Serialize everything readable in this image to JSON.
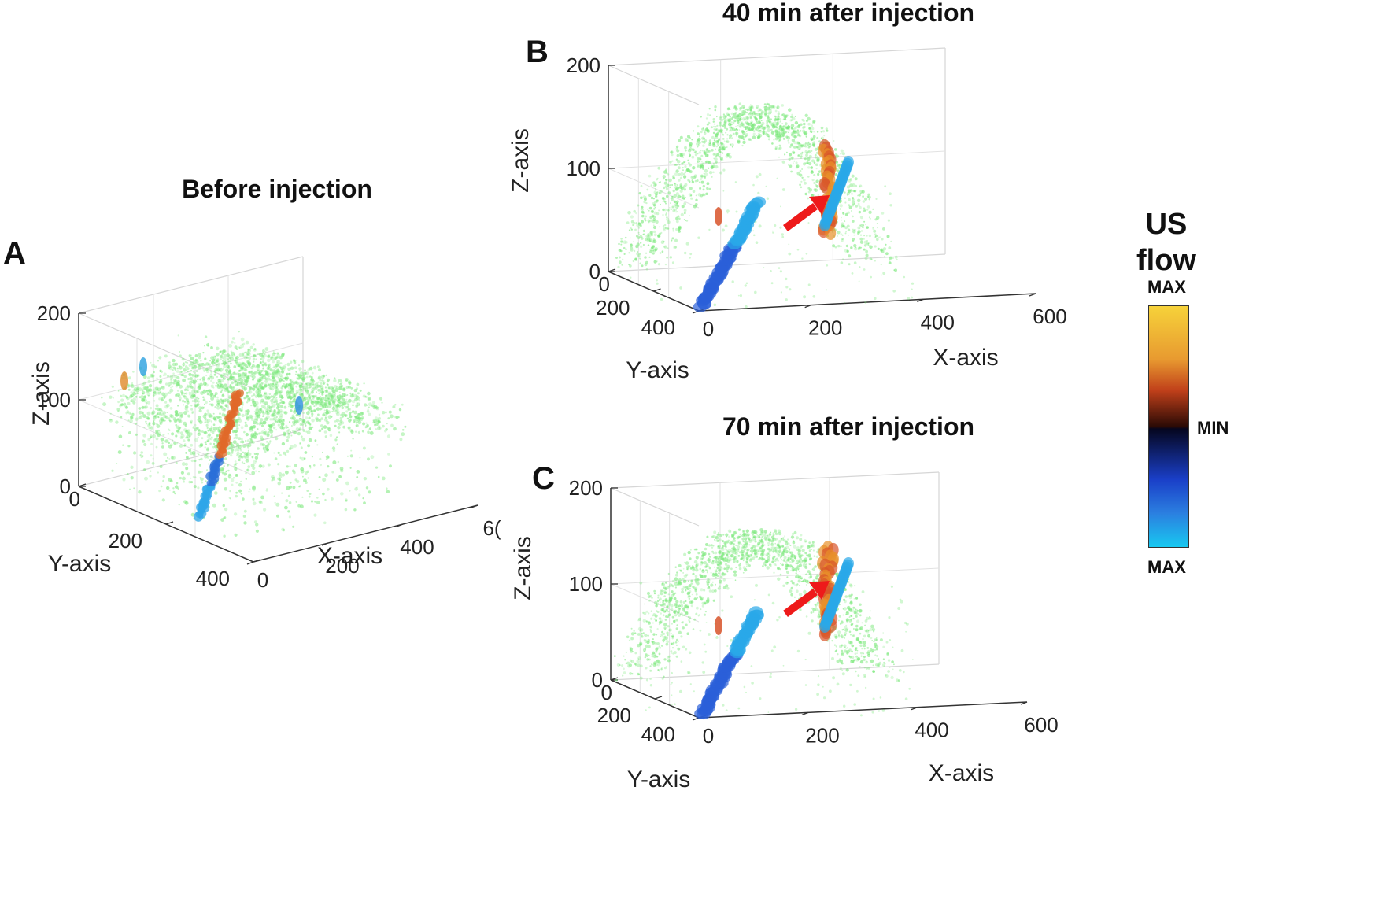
{
  "colors": {
    "background": "#3f8f3f",
    "cb_top": "#f6d23a",
    "cb_mid_warm": "#c0401a",
    "cb_mid_dark": "#2a0a05",
    "cb_mid_cool": "#05061f",
    "cb_low_cool": "#1a3fc8",
    "cb_bottom": "#18c8f0",
    "arrow": "#ee1a1a",
    "point_green": "#7ae87a"
  },
  "colorbar": {
    "title_line1": "US",
    "title_line2": "flow",
    "top_label": "MAX",
    "mid_label": "MIN",
    "bottom_label": "MAX"
  },
  "chart_data": [
    {
      "type": "scatter",
      "panel": "A",
      "title": "Before injection",
      "xlabel": "X-axis",
      "ylabel": "Y-axis",
      "zlabel": "Z-axis",
      "xlim": [
        0,
        600
      ],
      "ylim": [
        0,
        400
      ],
      "zlim": [
        0,
        200
      ],
      "x_ticks": [
        "0",
        "200",
        "400",
        "6("
      ],
      "y_ticks": [
        "0",
        "200",
        "400"
      ],
      "z_ticks": [
        "0",
        "100",
        "200"
      ],
      "arrow": false,
      "note": "3D ultrasound flow volume; dense green cloud with a thin diagonal blue/red vessel"
    },
    {
      "type": "scatter",
      "panel": "B",
      "title": "40 min after injection",
      "xlabel": "X-axis",
      "ylabel": "Y-axis",
      "zlabel": "Z-axis",
      "xlim": [
        0,
        600
      ],
      "ylim": [
        0,
        400
      ],
      "zlim": [
        0,
        200
      ],
      "x_ticks": [
        "0",
        "200",
        "400",
        "600"
      ],
      "y_ticks": [
        "0",
        "200",
        "400"
      ],
      "z_ticks": [
        "0",
        "100",
        "200"
      ],
      "arrow": true,
      "note": "Arched green vessel, strong blue diagonal vessel, orange/red hotspot marked by red arrow"
    },
    {
      "type": "scatter",
      "panel": "C",
      "title": "70 min after injection",
      "xlabel": "X-axis",
      "ylabel": "Y-axis",
      "zlabel": "Z-axis",
      "xlim": [
        0,
        600
      ],
      "ylim": [
        0,
        400
      ],
      "zlim": [
        0,
        200
      ],
      "x_ticks": [
        "0",
        "200",
        "400",
        "600"
      ],
      "y_ticks": [
        "0",
        "200",
        "400"
      ],
      "z_ticks": [
        "0",
        "100",
        "200"
      ],
      "arrow": true,
      "note": "Similar to B; arched green vessel, blue diagonal vessel, orange hotspot marked by red arrow"
    }
  ]
}
